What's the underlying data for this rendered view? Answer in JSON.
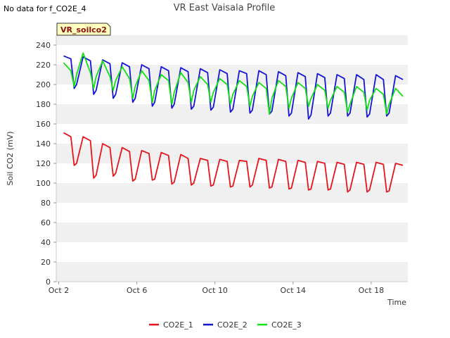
{
  "note": "No data for f_CO2E_4",
  "chart_data": {
    "type": "line",
    "title": "VR East Vaisala Profile",
    "xlabel": "Time",
    "ylabel": "Soil CO2 (mV)",
    "site_label": "VR_soilco2",
    "ylim": [
      0,
      250
    ],
    "yticks": [
      0,
      20,
      40,
      60,
      80,
      100,
      120,
      140,
      160,
      180,
      200,
      220,
      240
    ],
    "xlim": [
      "2023-10-01T21:00",
      "2023-10-19T21:00"
    ],
    "xticks": [
      {
        "label": "Oct 2",
        "date": "2023-10-02"
      },
      {
        "label": "Oct 6",
        "date": "2023-10-06"
      },
      {
        "label": "Oct 10",
        "date": "2023-10-10"
      },
      {
        "label": "Oct 14",
        "date": "2023-10-14"
      },
      {
        "label": "Oct 18",
        "date": "2023-10-18"
      }
    ],
    "grid": "horizontal bands",
    "legend_position": "bottom",
    "series": [
      {
        "name": "CO2E_1",
        "color": "#e8141c",
        "x": [
          "2023-10-02T06:00",
          "2023-10-02T15:00",
          "2023-10-02T19:00",
          "2023-10-02T22:00",
          "2023-10-03T06:00",
          "2023-10-03T15:00",
          "2023-10-03T19:00",
          "2023-10-03T22:00",
          "2023-10-04T06:00",
          "2023-10-04T15:00",
          "2023-10-04T19:00",
          "2023-10-04T22:00",
          "2023-10-05T06:00",
          "2023-10-05T15:00",
          "2023-10-05T19:00",
          "2023-10-05T22:00",
          "2023-10-06T06:00",
          "2023-10-06T15:00",
          "2023-10-06T19:00",
          "2023-10-06T22:00",
          "2023-10-07T06:00",
          "2023-10-07T15:00",
          "2023-10-07T19:00",
          "2023-10-07T22:00",
          "2023-10-08T06:00",
          "2023-10-08T15:00",
          "2023-10-08T19:00",
          "2023-10-08T22:00",
          "2023-10-09T06:00",
          "2023-10-09T15:00",
          "2023-10-09T19:00",
          "2023-10-09T22:00",
          "2023-10-10T06:00",
          "2023-10-10T15:00",
          "2023-10-10T19:00",
          "2023-10-10T22:00",
          "2023-10-11T06:00",
          "2023-10-11T15:00",
          "2023-10-11T19:00",
          "2023-10-11T22:00",
          "2023-10-12T06:00",
          "2023-10-12T15:00",
          "2023-10-12T19:00",
          "2023-10-12T22:00",
          "2023-10-13T06:00",
          "2023-10-13T15:00",
          "2023-10-13T19:00",
          "2023-10-13T22:00",
          "2023-10-14T06:00",
          "2023-10-14T15:00",
          "2023-10-14T19:00",
          "2023-10-14T22:00",
          "2023-10-15T06:00",
          "2023-10-15T15:00",
          "2023-10-15T19:00",
          "2023-10-15T22:00",
          "2023-10-16T06:00",
          "2023-10-16T15:00",
          "2023-10-16T19:00",
          "2023-10-16T22:00",
          "2023-10-17T06:00",
          "2023-10-17T15:00",
          "2023-10-17T19:00",
          "2023-10-17T22:00",
          "2023-10-18T06:00",
          "2023-10-18T15:00",
          "2023-10-18T19:00",
          "2023-10-18T22:00",
          "2023-10-19T06:00",
          "2023-10-19T15:00"
        ],
        "y": [
          151,
          147,
          118,
          120,
          147,
          143,
          105,
          108,
          140,
          136,
          107,
          110,
          136,
          132,
          102,
          104,
          133,
          130,
          103,
          104,
          131,
          128,
          99,
          101,
          129,
          125,
          98,
          100,
          125,
          123,
          97,
          98,
          124,
          122,
          96,
          97,
          123,
          122,
          96,
          98,
          125,
          123,
          95,
          96,
          124,
          122,
          94,
          95,
          123,
          121,
          93,
          94,
          122,
          120,
          93,
          94,
          121,
          119,
          91,
          93,
          121,
          119,
          91,
          93,
          121,
          119,
          91,
          92,
          120,
          118
        ]
      },
      {
        "name": "CO2E_2",
        "color": "#1414d8",
        "x": [
          "2023-10-02T06:00",
          "2023-10-02T15:00",
          "2023-10-02T19:00",
          "2023-10-02T22:00",
          "2023-10-03T06:00",
          "2023-10-03T15:00",
          "2023-10-03T19:00",
          "2023-10-03T22:00",
          "2023-10-04T06:00",
          "2023-10-04T15:00",
          "2023-10-04T19:00",
          "2023-10-04T22:00",
          "2023-10-05T06:00",
          "2023-10-05T15:00",
          "2023-10-05T19:00",
          "2023-10-05T22:00",
          "2023-10-06T06:00",
          "2023-10-06T15:00",
          "2023-10-06T19:00",
          "2023-10-06T22:00",
          "2023-10-07T06:00",
          "2023-10-07T15:00",
          "2023-10-07T19:00",
          "2023-10-07T22:00",
          "2023-10-08T06:00",
          "2023-10-08T15:00",
          "2023-10-08T19:00",
          "2023-10-08T22:00",
          "2023-10-09T06:00",
          "2023-10-09T15:00",
          "2023-10-09T19:00",
          "2023-10-09T22:00",
          "2023-10-10T06:00",
          "2023-10-10T15:00",
          "2023-10-10T19:00",
          "2023-10-10T22:00",
          "2023-10-11T06:00",
          "2023-10-11T15:00",
          "2023-10-11T19:00",
          "2023-10-11T22:00",
          "2023-10-12T06:00",
          "2023-10-12T15:00",
          "2023-10-12T19:00",
          "2023-10-12T22:00",
          "2023-10-13T06:00",
          "2023-10-13T15:00",
          "2023-10-13T19:00",
          "2023-10-13T22:00",
          "2023-10-14T06:00",
          "2023-10-14T15:00",
          "2023-10-14T19:00",
          "2023-10-14T22:00",
          "2023-10-15T06:00",
          "2023-10-15T15:00",
          "2023-10-15T19:00",
          "2023-10-15T22:00",
          "2023-10-16T06:00",
          "2023-10-16T15:00",
          "2023-10-16T19:00",
          "2023-10-16T22:00",
          "2023-10-17T06:00",
          "2023-10-17T15:00",
          "2023-10-17T19:00",
          "2023-10-17T22:00",
          "2023-10-18T06:00",
          "2023-10-18T15:00",
          "2023-10-18T19:00",
          "2023-10-18T22:00",
          "2023-10-19T06:00",
          "2023-10-19T15:00"
        ],
        "y": [
          229,
          226,
          196,
          200,
          228,
          224,
          190,
          194,
          225,
          221,
          186,
          190,
          222,
          218,
          182,
          186,
          220,
          216,
          178,
          182,
          218,
          214,
          176,
          180,
          217,
          213,
          175,
          178,
          216,
          212,
          174,
          177,
          215,
          211,
          172,
          175,
          214,
          211,
          171,
          174,
          214,
          210,
          170,
          173,
          213,
          209,
          168,
          171,
          212,
          208,
          165,
          169,
          211,
          207,
          168,
          171,
          210,
          206,
          168,
          171,
          210,
          205,
          167,
          170,
          210,
          205,
          168,
          171,
          209,
          205
        ]
      },
      {
        "name": "CO2E_3",
        "color": "#14e014",
        "x": [
          "2023-10-02T06:00",
          "2023-10-02T15:00",
          "2023-10-02T19:00",
          "2023-10-02T22:00",
          "2023-10-03T06:00",
          "2023-10-03T15:00",
          "2023-10-03T19:00",
          "2023-10-03T22:00",
          "2023-10-04T06:00",
          "2023-10-04T15:00",
          "2023-10-04T19:00",
          "2023-10-04T22:00",
          "2023-10-05T06:00",
          "2023-10-05T15:00",
          "2023-10-05T19:00",
          "2023-10-05T22:00",
          "2023-10-06T06:00",
          "2023-10-06T15:00",
          "2023-10-06T19:00",
          "2023-10-06T22:00",
          "2023-10-07T06:00",
          "2023-10-07T15:00",
          "2023-10-07T19:00",
          "2023-10-07T22:00",
          "2023-10-08T06:00",
          "2023-10-08T15:00",
          "2023-10-08T19:00",
          "2023-10-08T22:00",
          "2023-10-09T06:00",
          "2023-10-09T15:00",
          "2023-10-09T19:00",
          "2023-10-09T22:00",
          "2023-10-10T06:00",
          "2023-10-10T15:00",
          "2023-10-10T19:00",
          "2023-10-10T22:00",
          "2023-10-11T06:00",
          "2023-10-11T15:00",
          "2023-10-11T19:00",
          "2023-10-11T22:00",
          "2023-10-12T06:00",
          "2023-10-12T15:00",
          "2023-10-12T19:00",
          "2023-10-12T22:00",
          "2023-10-13T06:00",
          "2023-10-13T15:00",
          "2023-10-13T19:00",
          "2023-10-13T22:00",
          "2023-10-14T06:00",
          "2023-10-14T15:00",
          "2023-10-14T19:00",
          "2023-10-14T22:00",
          "2023-10-15T06:00",
          "2023-10-15T15:00",
          "2023-10-15T19:00",
          "2023-10-15T22:00",
          "2023-10-16T06:00",
          "2023-10-16T15:00",
          "2023-10-16T19:00",
          "2023-10-16T22:00",
          "2023-10-17T06:00",
          "2023-10-17T15:00",
          "2023-10-17T19:00",
          "2023-10-17T22:00",
          "2023-10-18T06:00",
          "2023-10-18T15:00",
          "2023-10-18T19:00",
          "2023-10-18T22:00",
          "2023-10-19T06:00",
          "2023-10-19T15:00"
        ],
        "y": [
          222,
          214,
          198,
          210,
          232,
          212,
          196,
          208,
          224,
          208,
          194,
          204,
          218,
          206,
          186,
          198,
          214,
          204,
          182,
          194,
          210,
          204,
          180,
          192,
          212,
          202,
          182,
          194,
          208,
          200,
          182,
          192,
          206,
          200,
          180,
          190,
          204,
          198,
          178,
          188,
          202,
          196,
          170,
          186,
          204,
          198,
          176,
          186,
          202,
          196,
          178,
          186,
          200,
          194,
          176,
          184,
          198,
          192,
          172,
          180,
          198,
          192,
          174,
          184,
          196,
          190,
          170,
          180,
          196,
          188
        ]
      }
    ]
  }
}
